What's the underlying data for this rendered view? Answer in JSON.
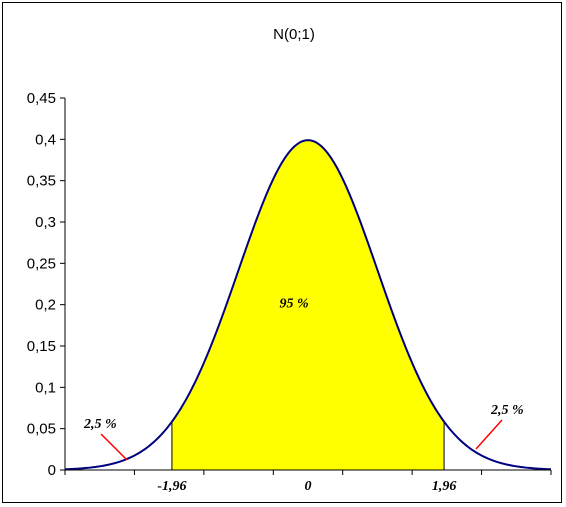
{
  "chart_data": {
    "type": "area",
    "title": "N(0;1)",
    "xlabel": "",
    "ylabel": "",
    "xlim": [
      -3.5,
      3.5
    ],
    "ylim": [
      0,
      0.45
    ],
    "y_ticks": [
      "0",
      "0,05",
      "0,1",
      "0,15",
      "0,2",
      "0,25",
      "0,3",
      "0,35",
      "0,4",
      "0,45"
    ],
    "x_ticks": [
      {
        "value": -1.96,
        "label": "-1,96"
      },
      {
        "value": 0,
        "label": "0"
      },
      {
        "value": 1.96,
        "label": "1,96"
      }
    ],
    "series": [
      {
        "distribution": "normal",
        "mean": 0,
        "sd": 1
      }
    ],
    "shaded_region": {
      "from": -1.96,
      "to": 1.96,
      "label": "95 %"
    },
    "tail_labels": [
      {
        "side": "left",
        "label": "2,5 %"
      },
      {
        "side": "right",
        "label": "2,5 %"
      }
    ],
    "grid": false,
    "colors": {
      "curve": "#000080",
      "fill": "#ffff00",
      "pointer": "#ff0000"
    }
  }
}
